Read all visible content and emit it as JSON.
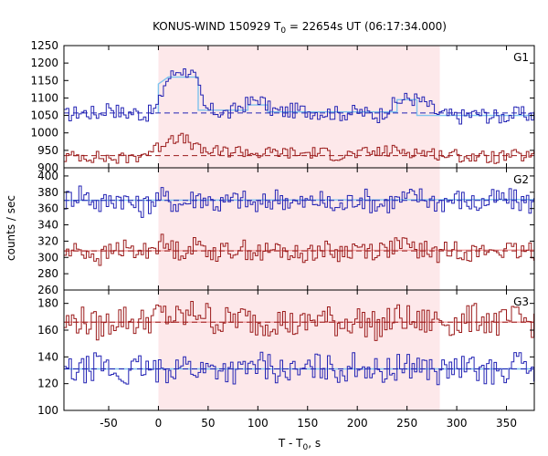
{
  "chart_data": {
    "type": "line",
    "title": "KONUS-WIND 150929 T",
    "title_sub": "0",
    "title_rest": " = 22654s UT (06:17:34.000)",
    "xlabel": "T - T",
    "xlabel_sub": "0",
    "xlabel_rest": ", s",
    "ylabel": "counts / sec",
    "xlim": [
      -95,
      378
    ],
    "xticks": [
      -50,
      0,
      50,
      100,
      150,
      200,
      250,
      300,
      350
    ],
    "shaded_interval": [
      0,
      283
    ],
    "shade_color": "#fde8ea",
    "panels": [
      {
        "label": "G1",
        "ylim": [
          900,
          1250
        ],
        "yticks": [
          900,
          950,
          1000,
          1050,
          1100,
          1150,
          1200,
          1250
        ],
        "series": [
          {
            "color": "#2323b4",
            "baseline": 1057,
            "points": [
              [
                -95,
                1050
              ],
              [
                -80,
                1060
              ],
              [
                -60,
                1055
              ],
              [
                -50,
                1080
              ],
              [
                -45,
                1065
              ],
              [
                -35,
                1055
              ],
              [
                -25,
                1060
              ],
              [
                -15,
                1050
              ],
              [
                -5,
                1065
              ],
              [
                0,
                1090
              ],
              [
                5,
                1140
              ],
              [
                10,
                1160
              ],
              [
                15,
                1170
              ],
              [
                20,
                1185
              ],
              [
                25,
                1175
              ],
              [
                30,
                1180
              ],
              [
                35,
                1160
              ],
              [
                40,
                1120
              ],
              [
                45,
                1070
              ],
              [
                50,
                1065
              ],
              [
                60,
                1060
              ],
              [
                70,
                1055
              ],
              [
                80,
                1075
              ],
              [
                90,
                1085
              ],
              [
                100,
                1100
              ],
              [
                110,
                1070
              ],
              [
                120,
                1060
              ],
              [
                140,
                1065
              ],
              [
                160,
                1060
              ],
              [
                180,
                1055
              ],
              [
                200,
                1060
              ],
              [
                220,
                1050
              ],
              [
                230,
                1070
              ],
              [
                240,
                1090
              ],
              [
                250,
                1100
              ],
              [
                260,
                1095
              ],
              [
                270,
                1080
              ],
              [
                280,
                1055
              ],
              [
                300,
                1045
              ],
              [
                320,
                1055
              ],
              [
                340,
                1045
              ],
              [
                360,
                1055
              ],
              [
                378,
                1050
              ]
            ]
          },
          {
            "color": "#9b1b1b",
            "baseline": 935,
            "points": [
              [
                -95,
                930
              ],
              [
                -80,
                935
              ],
              [
                -60,
                930
              ],
              [
                -40,
                925
              ],
              [
                -20,
                935
              ],
              [
                0,
                960
              ],
              [
                10,
                990
              ],
              [
                20,
                985
              ],
              [
                30,
                975
              ],
              [
                40,
                950
              ],
              [
                60,
                945
              ],
              [
                80,
                950
              ],
              [
                100,
                940
              ],
              [
                120,
                945
              ],
              [
                140,
                940
              ],
              [
                160,
                945
              ],
              [
                180,
                935
              ],
              [
                200,
                940
              ],
              [
                220,
                945
              ],
              [
                240,
                950
              ],
              [
                260,
                945
              ],
              [
                280,
                940
              ],
              [
                300,
                935
              ],
              [
                320,
                930
              ],
              [
                340,
                930
              ],
              [
                360,
                935
              ],
              [
                378,
                930
              ]
            ]
          }
        ],
        "fits": [
          {
            "color": "#7fc4ee",
            "points": [
              [
                0,
                1057
              ],
              [
                0,
                1140
              ],
              [
                10,
                1160
              ],
              [
                40,
                1160
              ],
              [
                40,
                1065
              ],
              [
                90,
                1065
              ],
              [
                90,
                1080
              ],
              [
                110,
                1080
              ],
              [
                110,
                1060
              ],
              [
                240,
                1060
              ],
              [
                240,
                1095
              ],
              [
                260,
                1095
              ],
              [
                260,
                1050
              ],
              [
                378,
                1050
              ]
            ]
          }
        ]
      },
      {
        "label": "G2",
        "ylim": [
          260,
          410
        ],
        "yticks": [
          260,
          280,
          300,
          320,
          340,
          360,
          380,
          400
        ],
        "series": [
          {
            "color": "#2323b4",
            "baseline": 370,
            "points": [
              [
                -95,
                370
              ],
              [
                -80,
                380
              ],
              [
                -60,
                365
              ],
              [
                -40,
                375
              ],
              [
                -20,
                360
              ],
              [
                0,
                375
              ],
              [
                20,
                365
              ],
              [
                40,
                375
              ],
              [
                60,
                365
              ],
              [
                80,
                372
              ],
              [
                100,
                362
              ],
              [
                120,
                375
              ],
              [
                140,
                365
              ],
              [
                160,
                370
              ],
              [
                180,
                360
              ],
              [
                200,
                375
              ],
              [
                220,
                365
              ],
              [
                240,
                370
              ],
              [
                260,
                375
              ],
              [
                280,
                368
              ],
              [
                300,
                372
              ],
              [
                320,
                365
              ],
              [
                340,
                372
              ],
              [
                360,
                370
              ],
              [
                378,
                365
              ]
            ]
          },
          {
            "color": "#9b1b1b",
            "baseline": 308,
            "points": [
              [
                -95,
                305
              ],
              [
                -80,
                310
              ],
              [
                -60,
                300
              ],
              [
                -40,
                312
              ],
              [
                -20,
                305
              ],
              [
                0,
                318
              ],
              [
                20,
                308
              ],
              [
                40,
                315
              ],
              [
                60,
                305
              ],
              [
                80,
                312
              ],
              [
                100,
                305
              ],
              [
                120,
                310
              ],
              [
                140,
                302
              ],
              [
                160,
                310
              ],
              [
                180,
                305
              ],
              [
                200,
                312
              ],
              [
                220,
                308
              ],
              [
                240,
                315
              ],
              [
                260,
                310
              ],
              [
                280,
                305
              ],
              [
                300,
                310
              ],
              [
                320,
                305
              ],
              [
                340,
                310
              ],
              [
                360,
                305
              ],
              [
                378,
                308
              ]
            ]
          }
        ],
        "fits": [
          {
            "color": "#7fc4ee",
            "points": [
              [
                -95,
                370
              ],
              [
                378,
                371
              ]
            ]
          },
          {
            "color": "#f0a0a0",
            "points": [
              [
                -95,
                308
              ],
              [
                378,
                309
              ]
            ]
          }
        ]
      },
      {
        "label": "G3",
        "ylim": [
          100,
          190
        ],
        "yticks": [
          100,
          120,
          140,
          160,
          180
        ],
        "series": [
          {
            "color": "#9b1b1b",
            "baseline": 166,
            "points": [
              [
                -95,
                165
              ],
              [
                -80,
                168
              ],
              [
                -60,
                162
              ],
              [
                -40,
                170
              ],
              [
                -20,
                165
              ],
              [
                0,
                172
              ],
              [
                20,
                168
              ],
              [
                40,
                175
              ],
              [
                60,
                165
              ],
              [
                80,
                170
              ],
              [
                100,
                165
              ],
              [
                120,
                168
              ],
              [
                140,
                162
              ],
              [
                160,
                170
              ],
              [
                180,
                165
              ],
              [
                200,
                168
              ],
              [
                220,
                162
              ],
              [
                240,
                170
              ],
              [
                260,
                165
              ],
              [
                280,
                168
              ],
              [
                300,
                165
              ],
              [
                320,
                170
              ],
              [
                340,
                165
              ],
              [
                360,
                168
              ],
              [
                378,
                165
              ]
            ]
          },
          {
            "color": "#2323b4",
            "baseline": 131,
            "points": [
              [
                -95,
                130
              ],
              [
                -80,
                128
              ],
              [
                -60,
                135
              ],
              [
                -40,
                125
              ],
              [
                -20,
                132
              ],
              [
                0,
                128
              ],
              [
                20,
                135
              ],
              [
                40,
                130
              ],
              [
                60,
                132
              ],
              [
                80,
                128
              ],
              [
                100,
                135
              ],
              [
                120,
                130
              ],
              [
                140,
                128
              ],
              [
                160,
                133
              ],
              [
                180,
                130
              ],
              [
                200,
                135
              ],
              [
                220,
                128
              ],
              [
                240,
                132
              ],
              [
                260,
                135
              ],
              [
                280,
                128
              ],
              [
                300,
                132
              ],
              [
                320,
                130
              ],
              [
                340,
                128
              ],
              [
                360,
                135
              ],
              [
                378,
                130
              ]
            ]
          }
        ],
        "fits": [
          {
            "color": "#7fc4ee",
            "points": [
              [
                -95,
                131
              ],
              [
                378,
                131
              ]
            ]
          },
          {
            "color": "#f0a0a0",
            "points": [
              [
                -95,
                166
              ],
              [
                378,
                166
              ]
            ]
          }
        ]
      }
    ]
  }
}
